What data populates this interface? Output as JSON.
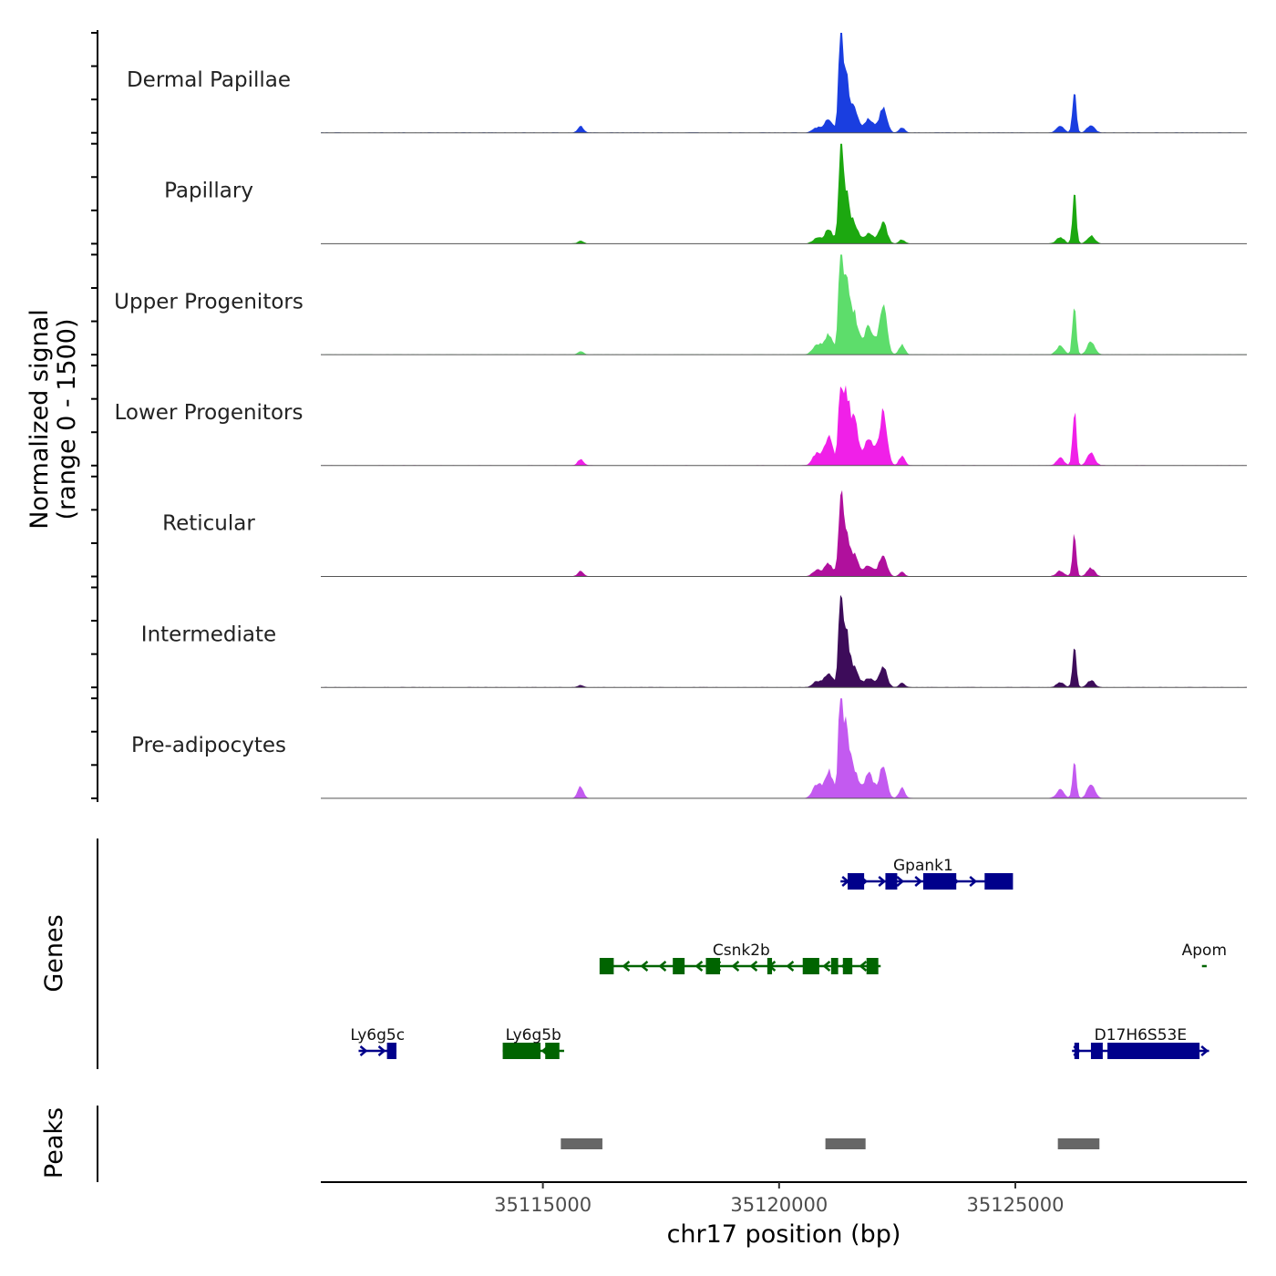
{
  "chart_data": {
    "type": "area",
    "title": "",
    "chromosome": "chr17",
    "xlabel": "chr17 position (bp)",
    "ylabel_line1": "Normalized signal",
    "ylabel_line2": "(range 0 - 1500)",
    "xlim": [
      35110300,
      35129900
    ],
    "ylim": [
      0,
      1500
    ],
    "x_ticks": [
      35115000,
      35120000,
      35125000
    ],
    "x_tick_labels": [
      "35115000",
      "35120000",
      "35125000"
    ],
    "peak_components": [
      {
        "center": 35115800,
        "width": 60,
        "rel": 0.05
      },
      {
        "center": 35120800,
        "width": 90,
        "rel": 0.04
      },
      {
        "center": 35121050,
        "width": 90,
        "rel": 0.1
      },
      {
        "center": 35121300,
        "width": 45,
        "rel": 0.7
      },
      {
        "center": 35121420,
        "width": 70,
        "rel": 0.4
      },
      {
        "center": 35121600,
        "width": 80,
        "rel": 0.16
      },
      {
        "center": 35121900,
        "width": 100,
        "rel": 0.1
      },
      {
        "center": 35122200,
        "width": 80,
        "rel": 0.18
      },
      {
        "center": 35122600,
        "width": 60,
        "rel": 0.04
      },
      {
        "center": 35125950,
        "width": 80,
        "rel": 0.05
      },
      {
        "center": 35126250,
        "width": 40,
        "rel": 0.32
      },
      {
        "center": 35126600,
        "width": 80,
        "rel": 0.06
      }
    ],
    "series": [
      {
        "name": "Dermal Papillae",
        "color": "#1a3ee0",
        "peak_value": 1420,
        "scale": [
          0.05,
          0.04,
          0.1,
          0.7,
          0.4,
          0.16,
          0.1,
          0.18,
          0.04,
          0.05,
          0.32,
          0.06
        ]
      },
      {
        "name": "Papillary",
        "color": "#1ca810",
        "peak_value": 1420,
        "scale": [
          0.02,
          0.04,
          0.1,
          0.7,
          0.4,
          0.14,
          0.08,
          0.16,
          0.03,
          0.05,
          0.38,
          0.06
        ]
      },
      {
        "name": "Upper Progenitors",
        "color": "#5ddd6b",
        "peak_value": 1620,
        "scale": [
          0.02,
          0.06,
          0.12,
          0.62,
          0.4,
          0.22,
          0.16,
          0.28,
          0.06,
          0.05,
          0.3,
          0.08
        ]
      },
      {
        "name": "Lower Progenitors",
        "color": "#f020e8",
        "peak_value": 1050,
        "scale": [
          0.05,
          0.1,
          0.22,
          0.55,
          0.55,
          0.35,
          0.22,
          0.42,
          0.08,
          0.06,
          0.45,
          0.1
        ]
      },
      {
        "name": "Reticular",
        "color": "#b0109d",
        "peak_value": 1180,
        "scale": [
          0.05,
          0.06,
          0.12,
          0.72,
          0.4,
          0.18,
          0.1,
          0.2,
          0.04,
          0.05,
          0.38,
          0.08
        ]
      },
      {
        "name": "Intermediate",
        "color": "#3d0c5a",
        "peak_value": 1270,
        "scale": [
          0.02,
          0.05,
          0.12,
          0.72,
          0.45,
          0.16,
          0.08,
          0.18,
          0.04,
          0.04,
          0.36,
          0.06
        ]
      },
      {
        "name": "Pre-adipocytes",
        "color": "#c35af0",
        "peak_value": 1550,
        "scale": [
          0.07,
          0.08,
          0.16,
          0.6,
          0.4,
          0.16,
          0.14,
          0.18,
          0.06,
          0.05,
          0.22,
          0.08
        ]
      }
    ]
  },
  "genes_panel": {
    "label": "Genes",
    "genes": [
      {
        "name": "Gpank1",
        "strand": "+",
        "row": 0,
        "color": "#00008b",
        "start": 35121300,
        "end": 35124800,
        "exons": [
          [
            35121450,
            35121800
          ],
          [
            35122250,
            35122500
          ],
          [
            35123050,
            35123750
          ],
          [
            35124350,
            35124950
          ]
        ]
      },
      {
        "name": "Csnk2b",
        "strand": "-",
        "row": 1,
        "color": "#006400",
        "start": 35116250,
        "end": 35122150,
        "exons": [
          [
            35116200,
            35116500
          ],
          [
            35117750,
            35118000
          ],
          [
            35118450,
            35118750
          ],
          [
            35119750,
            35119850
          ],
          [
            35120500,
            35120850
          ],
          [
            35121100,
            35121250
          ],
          [
            35121350,
            35121550
          ],
          [
            35121850,
            35122100
          ]
        ]
      },
      {
        "name": "Apom",
        "strand": "-",
        "row": 1,
        "color": "#006400",
        "start": 35128950,
        "end": 35129050,
        "exons": []
      },
      {
        "name": "Ly6g5c",
        "strand": "+",
        "row": 2,
        "color": "#00008b",
        "start": 35111100,
        "end": 35111900,
        "exons": [
          [
            35111700,
            35111900
          ]
        ]
      },
      {
        "name": "Ly6g5b",
        "strand": "-",
        "row": 2,
        "color": "#006400",
        "start": 35114150,
        "end": 35115450,
        "exons": [
          [
            35114150,
            35114950
          ],
          [
            35115050,
            35115350
          ]
        ]
      },
      {
        "name": "D17H6S53E",
        "strand": "+",
        "row": 2,
        "color": "#00008b",
        "start": 35126200,
        "end": 35129100,
        "exons": [
          [
            35126250,
            35126350
          ],
          [
            35126600,
            35126850
          ],
          [
            35126950,
            35128900
          ]
        ]
      }
    ]
  },
  "peaks_panel": {
    "label": "Peaks",
    "color": "#666666",
    "peaks": [
      [
        35115380,
        35116260
      ],
      [
        35120980,
        35121830
      ],
      [
        35125900,
        35126780
      ]
    ]
  }
}
